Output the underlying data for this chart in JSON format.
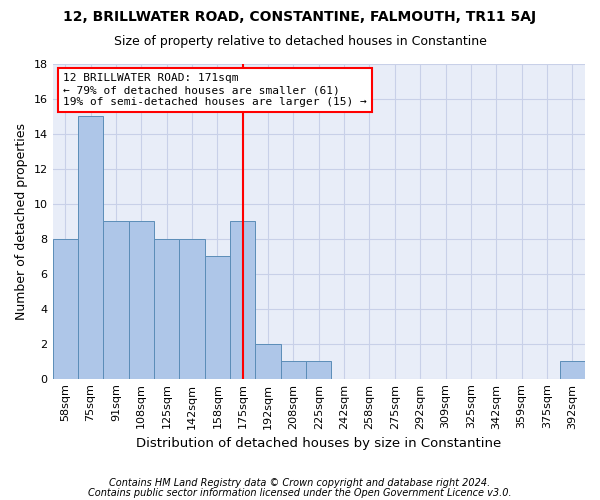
{
  "title1": "12, BRILLWATER ROAD, CONSTANTINE, FALMOUTH, TR11 5AJ",
  "title2": "Size of property relative to detached houses in Constantine",
  "xlabel": "Distribution of detached houses by size in Constantine",
  "ylabel": "Number of detached properties",
  "footnote1": "Contains HM Land Registry data © Crown copyright and database right 2024.",
  "footnote2": "Contains public sector information licensed under the Open Government Licence v3.0.",
  "bar_labels": [
    "58sqm",
    "75sqm",
    "91sqm",
    "108sqm",
    "125sqm",
    "142sqm",
    "158sqm",
    "175sqm",
    "192sqm",
    "208sqm",
    "225sqm",
    "242sqm",
    "258sqm",
    "275sqm",
    "292sqm",
    "309sqm",
    "325sqm",
    "342sqm",
    "359sqm",
    "375sqm",
    "392sqm"
  ],
  "bar_values": [
    8,
    15,
    9,
    9,
    8,
    8,
    7,
    9,
    2,
    1,
    1,
    0,
    0,
    0,
    0,
    0,
    0,
    0,
    0,
    0,
    1
  ],
  "bar_color": "#aec6e8",
  "bar_edge_color": "#5b8db8",
  "grid_color": "#c8d0e8",
  "background_color": "#e8edf8",
  "ref_line_x": 7.0,
  "ref_line_color": "red",
  "annotation_line1": "12 BRILLWATER ROAD: 171sqm",
  "annotation_line2": "← 79% of detached houses are smaller (61)",
  "annotation_line3": "19% of semi-detached houses are larger (15) →",
  "annotation_box_color": "white",
  "annotation_box_edge_color": "red",
  "ylim": [
    0,
    18
  ],
  "yticks": [
    0,
    2,
    4,
    6,
    8,
    10,
    12,
    14,
    16,
    18
  ],
  "title1_fontsize": 10,
  "title2_fontsize": 9,
  "xlabel_fontsize": 9.5,
  "ylabel_fontsize": 9,
  "tick_fontsize": 8,
  "annotation_fontsize": 8,
  "footnote_fontsize": 7
}
